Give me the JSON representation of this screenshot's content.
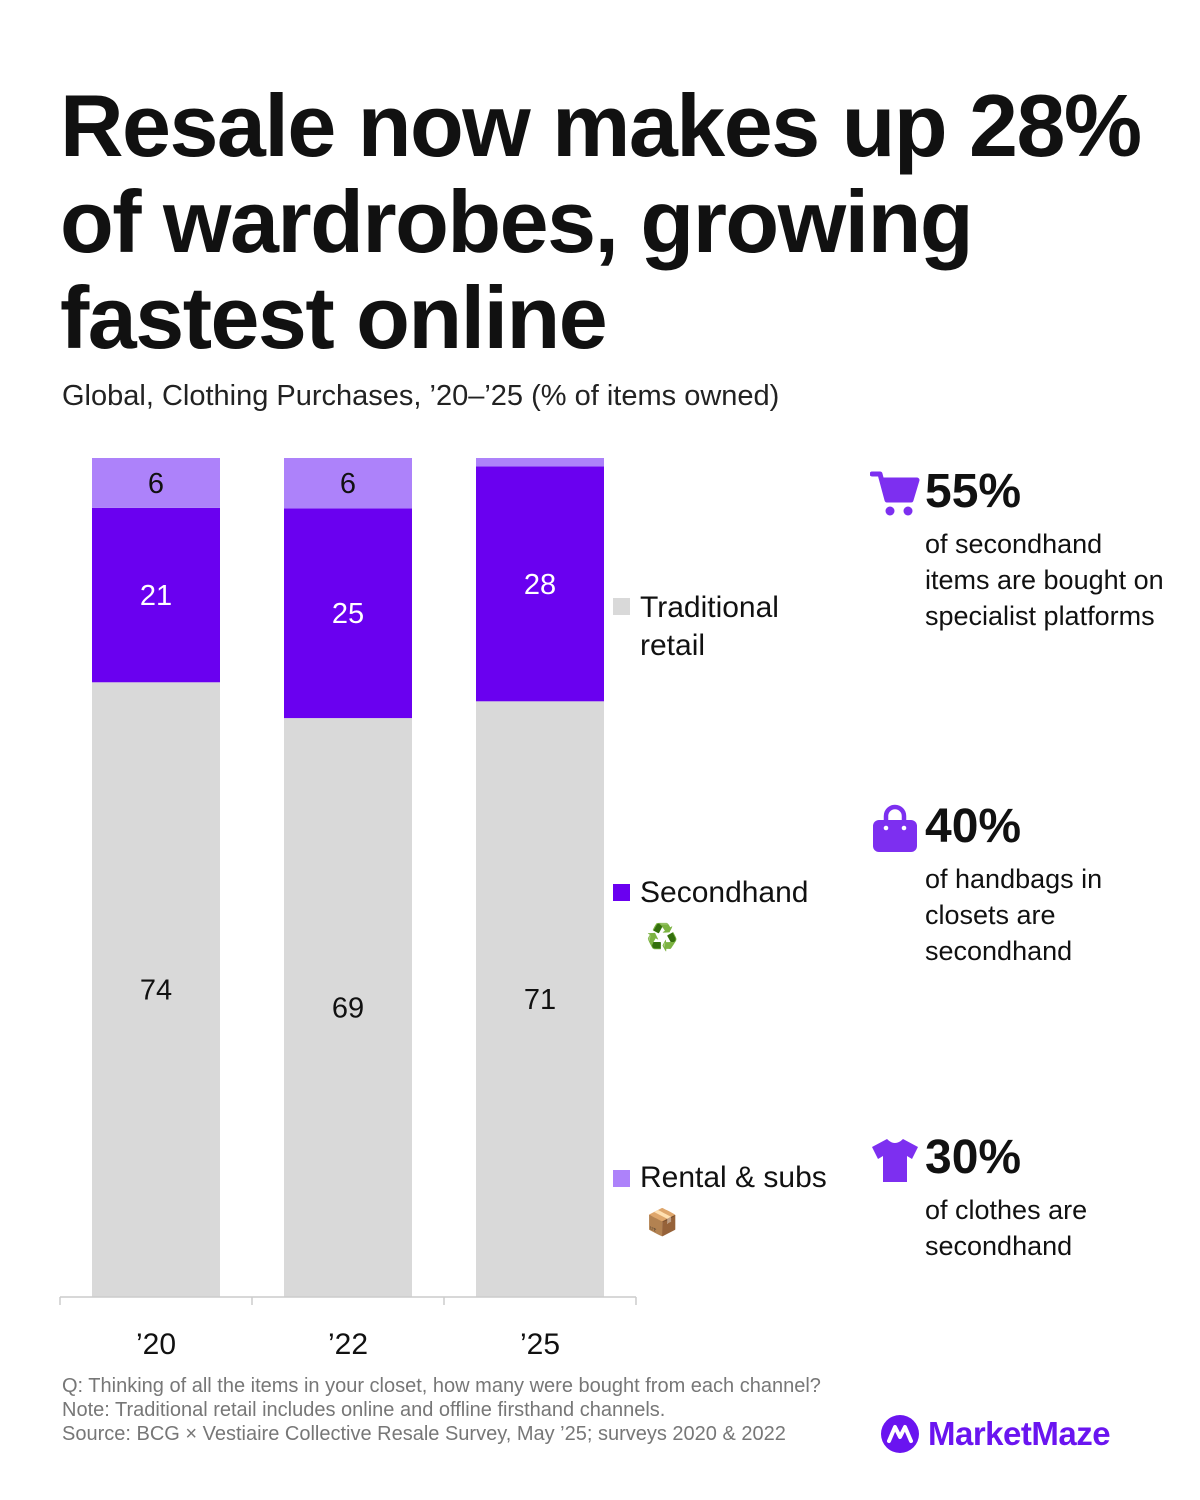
{
  "title": "Resale now makes up 28% of wardrobes, growing fastest online",
  "subtitle": "Global, Clothing Purchases, ’20–’25 (% of items owned)",
  "colors": {
    "traditional": "#d9d9d9",
    "secondhand": "#6a00f0",
    "rental": "#ad82fa",
    "accent": "#7d2ff0"
  },
  "chart_data": {
    "type": "bar",
    "stacked": true,
    "categories": [
      "’20",
      "’22",
      "’25"
    ],
    "series": [
      {
        "name": "Traditional retail",
        "values": [
          74,
          69,
          71
        ],
        "labels": [
          "74",
          "69",
          "71"
        ]
      },
      {
        "name": "Secondhand",
        "values": [
          21,
          25,
          28
        ],
        "labels": [
          "21",
          "25",
          "28"
        ]
      },
      {
        "name": "Rental & subs",
        "values": [
          6,
          6,
          1
        ],
        "labels": [
          "6",
          "6",
          ""
        ]
      }
    ],
    "ylim": [
      0,
      100
    ],
    "grid": false,
    "legend_position": "right"
  },
  "legend": {
    "traditional": "Traditional retail",
    "secondhand": "Secondhand",
    "secondhand_emoji": "♻️",
    "rental": "Rental & subs",
    "rental_emoji": "📦"
  },
  "stats": [
    {
      "icon": "shopping-cart-icon",
      "value": "55%",
      "desc": "of secondhand items are bought on specialist platforms"
    },
    {
      "icon": "handbag-icon",
      "value": "40%",
      "desc": "of handbags in closets are secondhand"
    },
    {
      "icon": "t-shirt-icon",
      "value": "30%",
      "desc": "of clothes are secondhand"
    }
  ],
  "footer": {
    "question": "Q: Thinking of all the items in your closet, how many were bought from each channel?",
    "note": "Note: Traditional retail includes online and offline firsthand channels.",
    "source": "Source: BCG × Vestiaire Collective Resale Survey, May ’25; surveys 2020 & 2022"
  },
  "brand": {
    "name": "MarketMaze",
    "icon": "marketmaze-logo-icon"
  }
}
